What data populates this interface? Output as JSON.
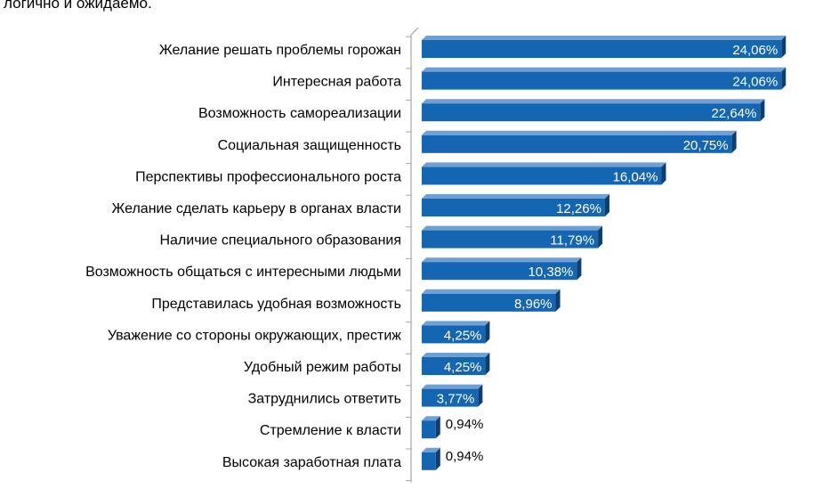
{
  "intro_text": "логично и ожидаемо.",
  "colors": {
    "bar_front": "#1466b3",
    "bar_side": "#0d3e6f",
    "bar_top": "#6fa0d3",
    "axis": "#a6a6a6",
    "label_inside": "#ffffff",
    "label_outside": "#000000"
  },
  "chart_data": {
    "type": "bar",
    "orientation": "horizontal",
    "style": "3d",
    "title": "",
    "xlabel": "",
    "ylabel": "",
    "value_unit": "%",
    "xlim": [
      0,
      26
    ],
    "grid": false,
    "legend": "none",
    "categories": [
      "Желание решать проблемы горожан",
      "Интересная работа",
      "Возможность самореализации",
      "Социальная защищенность",
      "Перспективы профессионального роста",
      "Желание сделать карьеру в органах власти",
      "Наличие специального образования",
      "Возможность общаться с интересными людьми",
      "Представилась удобная возможность",
      "Уважение со стороны окружающих, престиж",
      "Удобный режим работы",
      "Затруднились ответить",
      "Стремление к власти",
      "Высокая заработная плата"
    ],
    "values": [
      24.06,
      24.06,
      22.64,
      20.75,
      16.04,
      12.26,
      11.79,
      10.38,
      8.96,
      4.25,
      4.25,
      3.77,
      0.94,
      0.94
    ],
    "data_labels": [
      "24,06%",
      "24,06%",
      "22,64%",
      "20,75%",
      "16,04%",
      "12,26%",
      "11,79%",
      "10,38%",
      "8,96%",
      "4,25%",
      "4,25%",
      "3,77%",
      "0,94%",
      "0,94%"
    ]
  }
}
